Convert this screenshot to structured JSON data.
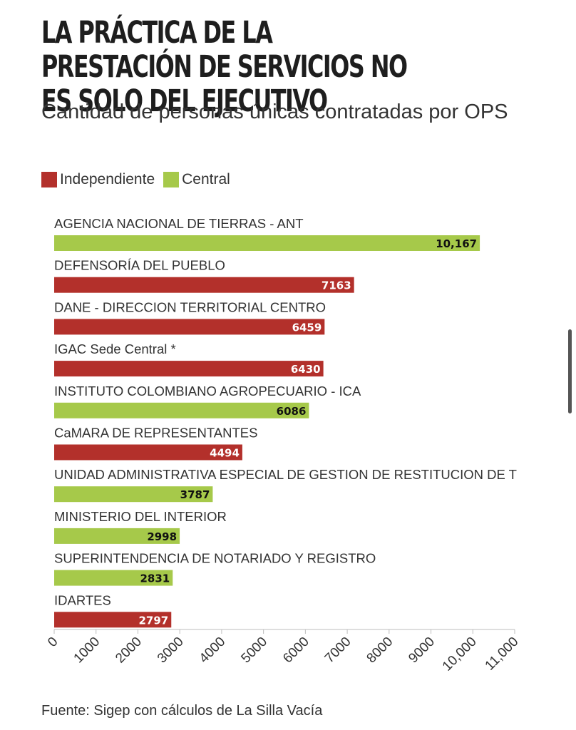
{
  "title": "LA PRÁCTICA DE LA PRESTACIÓN DE SERVICIOS NO ES SOLO DEL EJECUTIVO",
  "subtitle": "Cantidad de personas únicas contratadas por OPS",
  "legend": [
    {
      "label": "Independiente",
      "color": "#b3302b"
    },
    {
      "label": "Central",
      "color": "#a6c94a"
    }
  ],
  "source": "Fuente: Sigep con cálculos de La Silla Vacía",
  "chart_data": {
    "type": "bar",
    "orientation": "horizontal",
    "title": "LA PRÁCTICA DE LA PRESTACIÓN DE SERVICIOS NO ES SOLO DEL EJECUTIVO",
    "subtitle": "Cantidad de personas únicas contratadas por OPS",
    "legend_placement": "top-left",
    "grid": false,
    "xlim": [
      0,
      11000
    ],
    "xticks": [
      "0",
      "1000",
      "2000",
      "3000",
      "4000",
      "5000",
      "6000",
      "7000",
      "8000",
      "9000",
      "10,000",
      "11,000"
    ],
    "xtick_values": [
      0,
      1000,
      2000,
      3000,
      4000,
      5000,
      6000,
      7000,
      8000,
      9000,
      10000,
      11000
    ],
    "bars": [
      {
        "category": "AGENCIA NACIONAL DE TIERRAS - ANT",
        "value": 10167,
        "value_label": "10,167",
        "group": "Central"
      },
      {
        "category": "DEFENSORÍA DEL PUEBLO",
        "value": 7163,
        "value_label": "7163",
        "group": "Independiente"
      },
      {
        "category": "DANE - DIRECCION TERRITORIAL CENTRO",
        "value": 6459,
        "value_label": "6459",
        "group": "Independiente"
      },
      {
        "category": "IGAC Sede Central *",
        "value": 6430,
        "value_label": "6430",
        "group": "Independiente"
      },
      {
        "category": "INSTITUTO COLOMBIANO AGROPECUARIO - ICA",
        "value": 6086,
        "value_label": "6086",
        "group": "Central"
      },
      {
        "category": "CaMARA DE REPRESENTANTES",
        "value": 4494,
        "value_label": "4494",
        "group": "Independiente"
      },
      {
        "category": "UNIDAD ADMINISTRATIVA ESPECIAL DE GESTION DE RESTITUCION DE T",
        "value": 3787,
        "value_label": "3787",
        "group": "Central"
      },
      {
        "category": "MINISTERIO DEL INTERIOR",
        "value": 2998,
        "value_label": "2998",
        "group": "Central"
      },
      {
        "category": "SUPERINTENDENCIA DE NOTARIADO Y REGISTRO",
        "value": 2831,
        "value_label": "2831",
        "group": "Central"
      },
      {
        "category": "IDARTES",
        "value": 2797,
        "value_label": "2797",
        "group": "Independiente"
      }
    ]
  }
}
